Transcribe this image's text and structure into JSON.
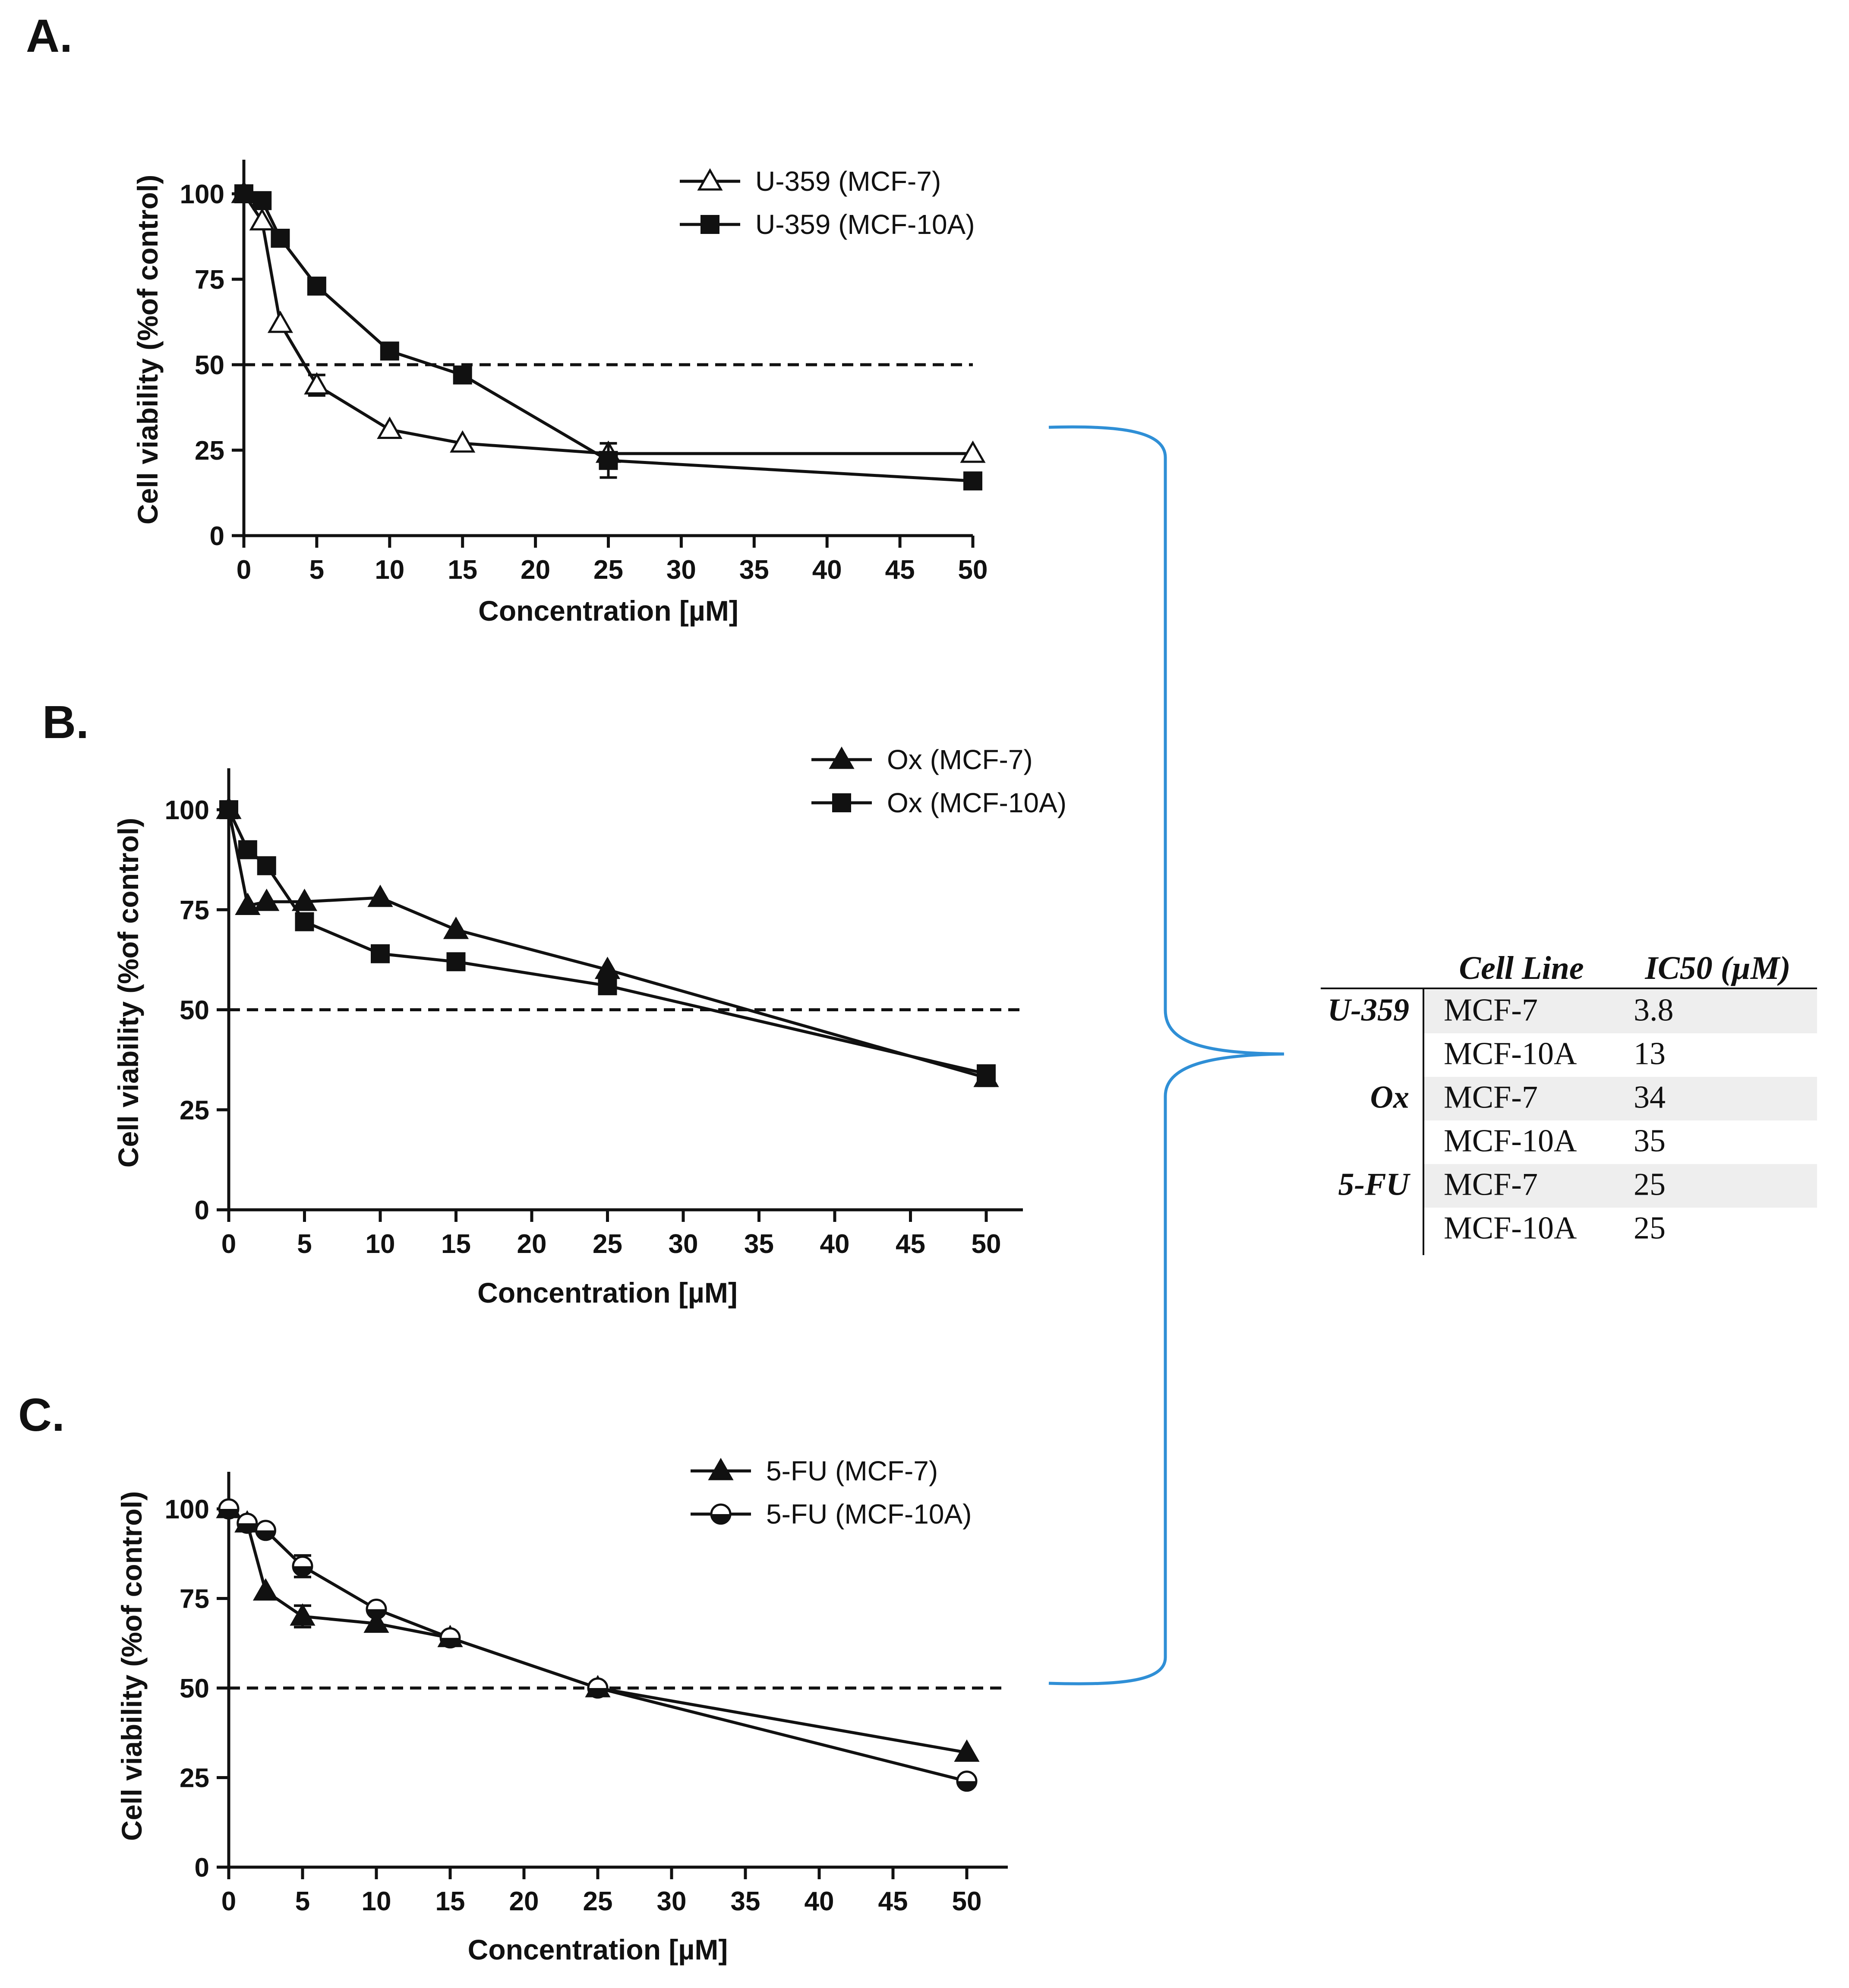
{
  "chart_data": [
    {
      "type": "line",
      "panel": "A.",
      "xlabel": "Concentration [µM]",
      "ylabel": "Cell viability (%of control)",
      "xticks": [
        0,
        5,
        10,
        15,
        20,
        25,
        30,
        35,
        40,
        45,
        50
      ],
      "yticks": [
        0,
        25,
        50,
        75,
        100
      ],
      "xlim": [
        0,
        50
      ],
      "ylim": [
        0,
        100
      ],
      "threshold": 50,
      "legend_position": "top-right",
      "series": [
        {
          "name": "U-359 (MCF-7)",
          "marker": "triangle-open",
          "x": [
            0,
            1.25,
            2.5,
            5,
            10,
            15,
            25,
            50
          ],
          "y": [
            100,
            92,
            62,
            44,
            31,
            27,
            24,
            24
          ],
          "err": [
            0,
            0,
            0,
            3,
            0,
            0,
            0,
            0
          ]
        },
        {
          "name": "U-359 (MCF-10A)",
          "marker": "square",
          "x": [
            0,
            1.25,
            2.5,
            5,
            10,
            15,
            25,
            50
          ],
          "y": [
            100,
            98,
            87,
            73,
            54,
            47,
            22,
            16
          ],
          "err": [
            0,
            0,
            0,
            0,
            0,
            0,
            5,
            0
          ]
        }
      ]
    },
    {
      "type": "line",
      "panel": "B.",
      "xlabel": "Concentration [µM]",
      "ylabel": "Cell viability (%of control)",
      "xticks": [
        0,
        5,
        10,
        15,
        20,
        25,
        30,
        35,
        40,
        45,
        50
      ],
      "yticks": [
        0,
        25,
        50,
        75,
        100
      ],
      "xlim": [
        0,
        50
      ],
      "ylim": [
        0,
        100
      ],
      "threshold": 50,
      "legend_position": "top-right",
      "series": [
        {
          "name": "Ox (MCF-7)",
          "marker": "triangle",
          "x": [
            0,
            1.25,
            2.5,
            5,
            10,
            15,
            25,
            50
          ],
          "y": [
            100,
            76,
            77,
            77,
            78,
            70,
            60,
            33
          ],
          "err": [
            0,
            0,
            0,
            0,
            0,
            0,
            0,
            2
          ]
        },
        {
          "name": "Ox (MCF-10A)",
          "marker": "square",
          "x": [
            0,
            1.25,
            2.5,
            5,
            10,
            15,
            25,
            50
          ],
          "y": [
            100,
            90,
            86,
            72,
            64,
            62,
            56,
            34
          ],
          "err": [
            0,
            0,
            0,
            0,
            0,
            0,
            0,
            0
          ]
        }
      ]
    },
    {
      "type": "line",
      "panel": "C.",
      "xlabel": "Concentration [µM]",
      "ylabel": "Cell viability (%of control)",
      "xticks": [
        0,
        5,
        10,
        15,
        20,
        25,
        30,
        35,
        40,
        45,
        50
      ],
      "yticks": [
        0,
        25,
        50,
        75,
        100
      ],
      "xlim": [
        0,
        50
      ],
      "ylim": [
        0,
        100
      ],
      "threshold": 50,
      "legend_position": "top-right",
      "series": [
        {
          "name": "5-FU (MCF-7)",
          "marker": "triangle",
          "x": [
            0,
            1.25,
            2.5,
            5,
            10,
            15,
            25,
            50
          ],
          "y": [
            100,
            96,
            77,
            70,
            68,
            64,
            50,
            32
          ],
          "err": [
            0,
            0,
            0,
            3,
            0,
            0,
            0,
            0
          ]
        },
        {
          "name": "5-FU (MCF-10A)",
          "marker": "circle-half",
          "x": [
            0,
            1.25,
            2.5,
            5,
            10,
            15,
            25,
            50
          ],
          "y": [
            100,
            96,
            94,
            84,
            72,
            64,
            50,
            24
          ],
          "err": [
            0,
            0,
            0,
            3,
            0,
            0,
            0,
            0
          ]
        }
      ]
    }
  ],
  "table": {
    "headers": [
      "Cell Line",
      "IC50 (µM)"
    ],
    "rows": [
      {
        "compound": "U-359",
        "cell_line": "MCF-7",
        "ic50": "3.8"
      },
      {
        "compound": "",
        "cell_line": "MCF-10A",
        "ic50": "13"
      },
      {
        "compound": "Ox",
        "cell_line": "MCF-7",
        "ic50": "34"
      },
      {
        "compound": "",
        "cell_line": "MCF-10A",
        "ic50": "35"
      },
      {
        "compound": "5-FU",
        "cell_line": "MCF-7",
        "ic50": "25"
      },
      {
        "compound": "",
        "cell_line": "MCF-10A",
        "ic50": "25"
      }
    ]
  },
  "colors": {
    "ink": "#111111",
    "bracket": "#2f8fd6",
    "row_shade": "#eeeeee",
    "background": "#ffffff"
  }
}
